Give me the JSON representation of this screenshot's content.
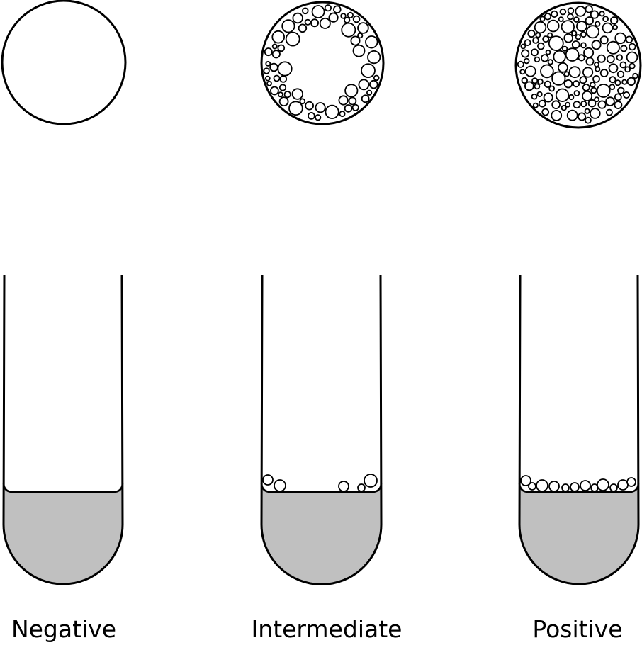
{
  "colors": {
    "stroke": "#000000",
    "liquid": "#c0c0c0",
    "background": "#ffffff",
    "bubble_fill": "#ffffff"
  },
  "panels": [
    {
      "id": "negative",
      "label": "Negative",
      "top_view": "clear",
      "tube_surface": "flat-meniscus-no-bubbles"
    },
    {
      "id": "intermediate",
      "label": "Intermediate",
      "top_view": "bubbles-around-edge",
      "tube_surface": "few-bubbles"
    },
    {
      "id": "positive",
      "label": "Positive",
      "top_view": "bubbles-throughout",
      "tube_surface": "bubble-layer"
    }
  ]
}
